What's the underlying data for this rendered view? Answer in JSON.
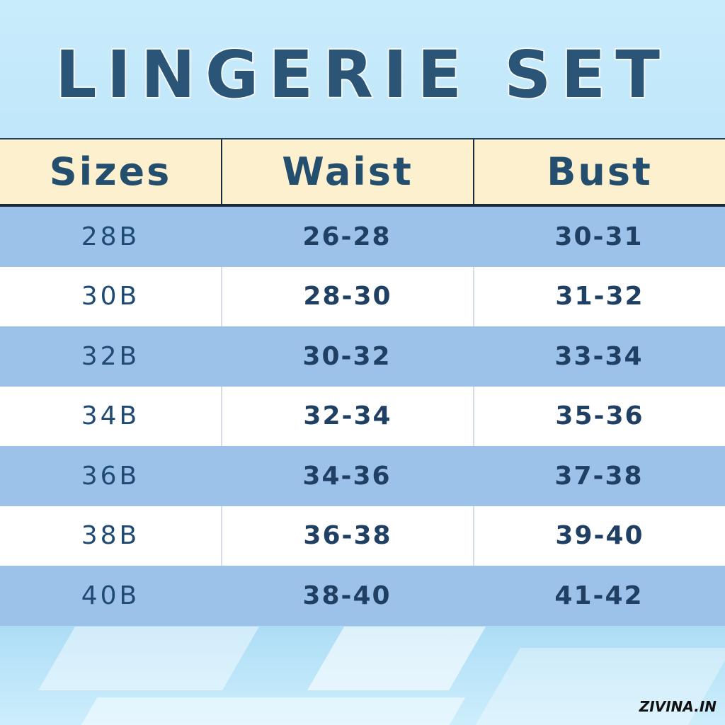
{
  "title": "LINGERIE SET",
  "table": {
    "headers": [
      "Sizes",
      "Waist",
      "Bust"
    ],
    "rows": [
      [
        "28B",
        "26-28",
        "30-31"
      ],
      [
        "30B",
        "28-30",
        "31-32"
      ],
      [
        "32B",
        "30-32",
        "33-34"
      ],
      [
        "34B",
        "32-34",
        "35-36"
      ],
      [
        "36B",
        "34-36",
        "37-38"
      ],
      [
        "38B",
        "36-38",
        "39-40"
      ],
      [
        "40B",
        "38-40",
        "41-42"
      ]
    ]
  },
  "brand": "ZIVINA.IN",
  "colors": {
    "header_bg": "#fdf0cf",
    "row_blue": "#9dc2ea",
    "text": "#1f4a73"
  }
}
